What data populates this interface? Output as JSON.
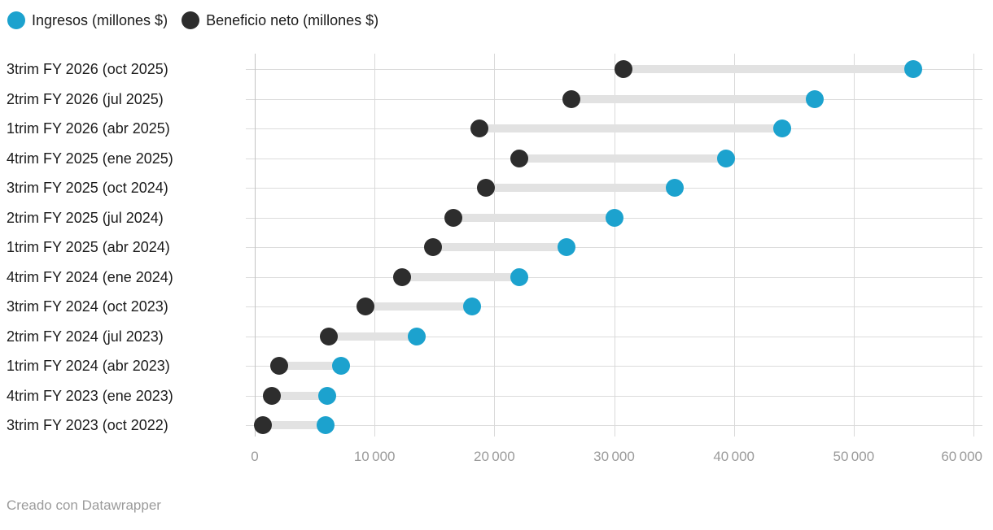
{
  "legend": {
    "items": [
      {
        "label": "Ingresos (millones $)",
        "color": "#1ca2ce"
      },
      {
        "label": "Beneficio neto (millones $)",
        "color": "#2d2d2d"
      }
    ]
  },
  "footer": {
    "text": "Creado con Datawrapper"
  },
  "chart_data": {
    "type": "scatter",
    "subtype": "dumbbell-range-plot",
    "title": "",
    "xlabel": "",
    "ylabel": "",
    "units": "millones $",
    "categories": [
      "3trim FY 2026 (oct 2025)",
      "2trim FY 2026 (jul 2025)",
      "1trim FY 2026 (abr 2025)",
      "4trim FY 2025 (ene 2025)",
      "3trim FY 2025 (oct 2024)",
      "2trim FY 2025 (jul 2024)",
      "1trim FY 2025 (abr 2024)",
      "4trim FY 2024 (ene 2024)",
      "3trim FY 2024 (oct 2023)",
      "2trim FY 2024 (jul 2023)",
      "1trim FY 2024 (abr 2023)",
      "4trim FY 2023 (ene 2023)",
      "3trim FY 2023 (oct 2022)"
    ],
    "series": [
      {
        "name": "Ingresos (millones $)",
        "color": "#1ca2ce",
        "values": [
          55000,
          46743,
          44062,
          39331,
          35082,
          30040,
          26044,
          22103,
          18120,
          13507,
          7192,
          6051,
          5931
        ]
      },
      {
        "name": "Beneficio neto (millones $)",
        "color": "#2d2d2d",
        "values": [
          30750,
          26422,
          18775,
          22091,
          19309,
          16599,
          14881,
          12285,
          9243,
          6188,
          2043,
          1414,
          680
        ]
      }
    ],
    "x_axis": {
      "min": 0,
      "max": 60000,
      "tick_step": 10000,
      "tick_labels": [
        "0",
        "10 000",
        "20 000",
        "30 000",
        "40 000",
        "50 000",
        "60 000"
      ]
    },
    "grid": "on",
    "legend_position": "top-left",
    "connector_color": "#e2e2e2"
  }
}
